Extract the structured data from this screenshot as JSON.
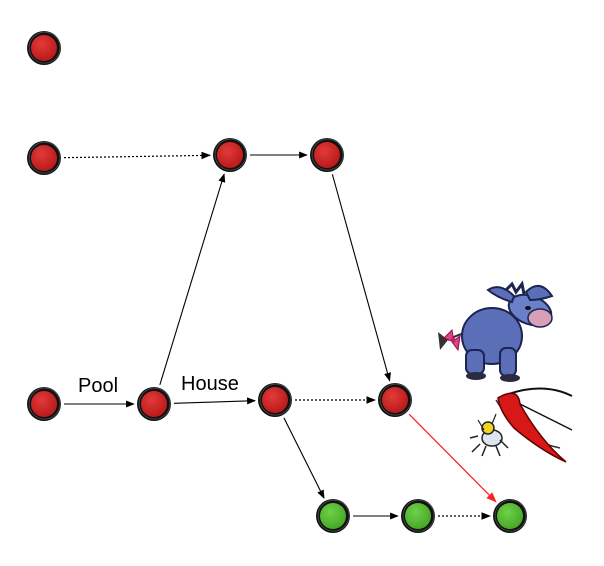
{
  "diagram": {
    "edge_labels": {
      "pool": "Pool",
      "house": "House"
    },
    "colors": {
      "node_red": "#cc2222",
      "node_green": "#55bb2e",
      "node_ring": "#111111",
      "edge_solid": "#000000",
      "edge_highlight": "#ff2222"
    },
    "nodes": [
      {
        "id": "n1",
        "color": "red"
      },
      {
        "id": "n2",
        "color": "red"
      },
      {
        "id": "n3",
        "color": "red"
      },
      {
        "id": "n4",
        "color": "red"
      },
      {
        "id": "n5",
        "color": "red"
      },
      {
        "id": "n6",
        "color": "red"
      },
      {
        "id": "n7",
        "color": "red"
      },
      {
        "id": "n8",
        "color": "red"
      },
      {
        "id": "n9",
        "color": "green"
      },
      {
        "id": "n10",
        "color": "green"
      },
      {
        "id": "n11",
        "color": "green"
      }
    ],
    "edges": [
      {
        "from": "n2",
        "to": "n3",
        "style": "dotted"
      },
      {
        "from": "n3",
        "to": "n4",
        "style": "solid"
      },
      {
        "from": "n4",
        "to": "n8",
        "style": "solid"
      },
      {
        "from": "n5",
        "to": "n6",
        "style": "solid",
        "label": "pool"
      },
      {
        "from": "n6",
        "to": "n3",
        "style": "solid"
      },
      {
        "from": "n6",
        "to": "n7",
        "style": "solid",
        "label": "house"
      },
      {
        "from": "n7",
        "to": "n8",
        "style": "dotted"
      },
      {
        "from": "n7",
        "to": "n9",
        "style": "solid"
      },
      {
        "from": "n9",
        "to": "n10",
        "style": "solid"
      },
      {
        "from": "n10",
        "to": "n11",
        "style": "dotted"
      },
      {
        "from": "n8",
        "to": "n11",
        "style": "highlight"
      }
    ],
    "illustrations": [
      "donkey-illustration",
      "bug-with-net-illustration"
    ]
  }
}
